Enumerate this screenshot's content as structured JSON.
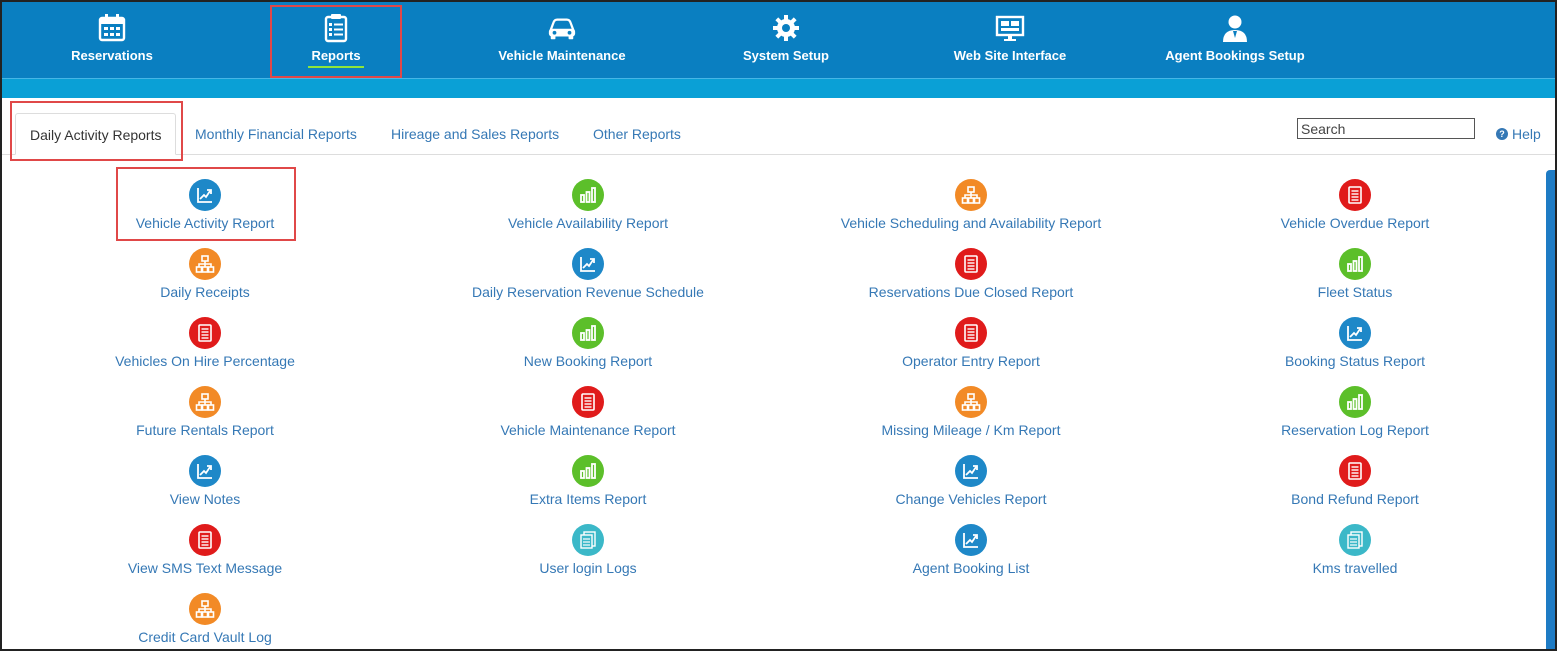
{
  "nav": {
    "items": [
      {
        "label": "Reservations",
        "icon": "calendar-icon"
      },
      {
        "label": "Reports",
        "icon": "clipboard-list-icon"
      },
      {
        "label": "Vehicle Maintenance",
        "icon": "car-icon"
      },
      {
        "label": "System Setup",
        "icon": "gear-icon"
      },
      {
        "label": "Web Site Interface",
        "icon": "monitor-icon"
      },
      {
        "label": "Agent Bookings Setup",
        "icon": "agent-icon"
      }
    ],
    "active": "Reports"
  },
  "tabs": {
    "items": [
      {
        "label": "Daily Activity Reports"
      },
      {
        "label": "Monthly Financial Reports"
      },
      {
        "label": "Hireage and Sales Reports"
      },
      {
        "label": "Other Reports"
      }
    ],
    "active": "Daily Activity Reports"
  },
  "search": {
    "placeholder": "Search"
  },
  "help": {
    "label": "Help"
  },
  "colors": {
    "nav_bg": "#0a7fc1",
    "sub_bar": "#0aa0d6",
    "link": "#3578b5",
    "highlight": "#e04848",
    "blue": "#1e88c8",
    "green": "#5cbf2a",
    "orange": "#f28a26",
    "red": "#e01b1b",
    "teal": "#3bb8c8"
  },
  "reports": {
    "columns": [
      [
        {
          "label": "Vehicle Activity Report",
          "icon": "trend-chart-icon",
          "color": "blue"
        },
        {
          "label": "Daily Receipts",
          "icon": "network-boxes-icon",
          "color": "orange"
        },
        {
          "label": "Vehicles On Hire Percentage",
          "icon": "document-icon",
          "color": "red"
        },
        {
          "label": "Future Rentals Report",
          "icon": "network-boxes-icon",
          "color": "orange"
        },
        {
          "label": "View Notes",
          "icon": "trend-chart-icon",
          "color": "blue"
        },
        {
          "label": "View SMS Text Message",
          "icon": "document-icon",
          "color": "red"
        },
        {
          "label": "Credit Card Vault Log",
          "icon": "network-boxes-icon",
          "color": "orange"
        }
      ],
      [
        {
          "label": "Vehicle Availability Report",
          "icon": "bar-chart-icon",
          "color": "green"
        },
        {
          "label": "Daily Reservation Revenue Schedule",
          "icon": "trend-chart-icon",
          "color": "blue"
        },
        {
          "label": "New Booking Report",
          "icon": "bar-chart-icon",
          "color": "green"
        },
        {
          "label": "Vehicle Maintenance Report",
          "icon": "document-icon",
          "color": "red"
        },
        {
          "label": "Extra Items Report",
          "icon": "bar-chart-icon",
          "color": "green"
        },
        {
          "label": "User login Logs",
          "icon": "log-pages-icon",
          "color": "teal"
        }
      ],
      [
        {
          "label": "Vehicle Scheduling and Availability Report",
          "icon": "network-boxes-icon",
          "color": "orange"
        },
        {
          "label": "Reservations Due Closed Report",
          "icon": "document-icon",
          "color": "red"
        },
        {
          "label": "Operator Entry Report",
          "icon": "document-icon",
          "color": "red"
        },
        {
          "label": "Missing Mileage / Km Report",
          "icon": "network-boxes-icon",
          "color": "orange"
        },
        {
          "label": "Change Vehicles Report",
          "icon": "trend-chart-icon",
          "color": "blue"
        },
        {
          "label": "Agent Booking List",
          "icon": "trend-chart-icon",
          "color": "blue"
        }
      ],
      [
        {
          "label": "Vehicle Overdue Report",
          "icon": "document-icon",
          "color": "red"
        },
        {
          "label": "Fleet Status",
          "icon": "bar-chart-icon",
          "color": "green"
        },
        {
          "label": "Booking Status Report",
          "icon": "trend-chart-icon",
          "color": "blue"
        },
        {
          "label": "Reservation Log Report",
          "icon": "bar-chart-icon",
          "color": "green"
        },
        {
          "label": "Bond Refund Report",
          "icon": "document-icon",
          "color": "red"
        },
        {
          "label": "Kms travelled",
          "icon": "log-pages-icon",
          "color": "teal"
        }
      ]
    ]
  }
}
